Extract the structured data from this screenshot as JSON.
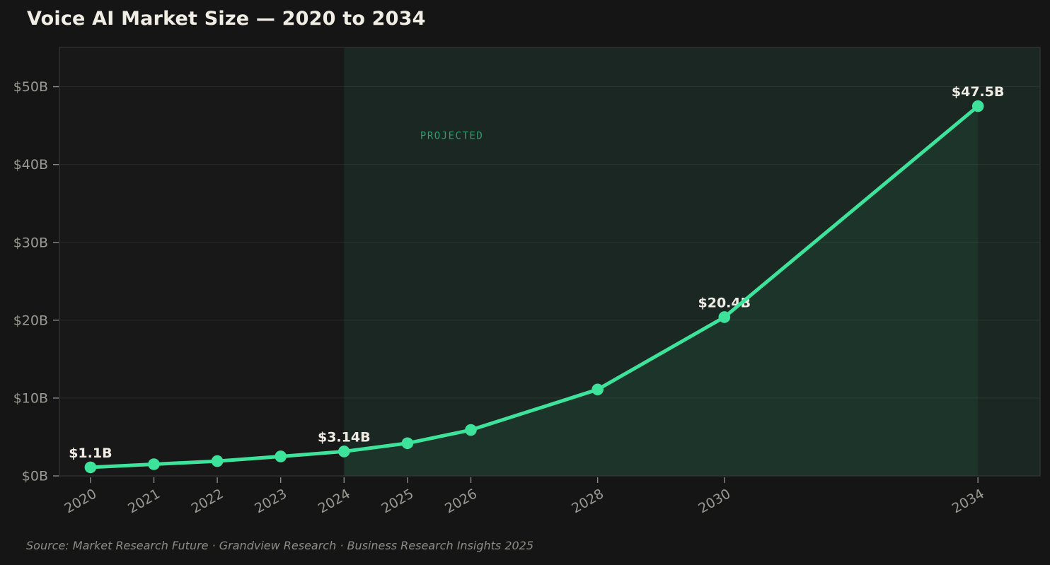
{
  "chart_data": {
    "type": "line",
    "title": "Voice AI Market Size — 2020 to 2034",
    "source": "Source: Market Research Future · Grandview Research · Business Research Insights 2025",
    "annotation": {
      "text": "PROJECTED",
      "x": 2025.7,
      "y": 43.3
    },
    "xlim": [
      2019.51,
      2034.98
    ],
    "ylim": [
      0,
      55.05
    ],
    "grid": "horizontal",
    "legend": "none",
    "projected_span": {
      "from": 2024,
      "to": 2034.98
    },
    "xticks": [
      {
        "v": 2020,
        "label": "2020"
      },
      {
        "v": 2021,
        "label": "2021"
      },
      {
        "v": 2022,
        "label": "2022"
      },
      {
        "v": 2023,
        "label": "2023"
      },
      {
        "v": 2024,
        "label": "2024"
      },
      {
        "v": 2025,
        "label": "2025"
      },
      {
        "v": 2026,
        "label": "2026"
      },
      {
        "v": 2028,
        "label": "2028"
      },
      {
        "v": 2030,
        "label": "2030"
      },
      {
        "v": 2034,
        "label": "2034"
      }
    ],
    "yticks": [
      {
        "v": 0,
        "label": "$0B"
      },
      {
        "v": 10,
        "label": "$10B"
      },
      {
        "v": 20,
        "label": "$20B"
      },
      {
        "v": 30,
        "label": "$30B"
      },
      {
        "v": 40,
        "label": "$40B"
      },
      {
        "v": 50,
        "label": "$50B"
      }
    ],
    "series": [
      {
        "name": "voice-ai-market-size",
        "x": [
          2020,
          2021,
          2022,
          2023,
          2024,
          2025,
          2026,
          2028,
          2030,
          2034
        ],
        "values": [
          1.1,
          1.5,
          1.9,
          2.5,
          3.14,
          4.2,
          5.9,
          11.1,
          20.4,
          47.5
        ],
        "point_labels": [
          {
            "x": 2020,
            "text": "$1.1B"
          },
          {
            "x": 2024,
            "text": "$3.14B"
          },
          {
            "x": 2030,
            "text": "$20.4B"
          },
          {
            "x": 2034,
            "text": "$47.5B"
          }
        ]
      }
    ],
    "colors": {
      "background": "#151515",
      "plot_background": "#181818",
      "line": "#3ee39b",
      "marker": "#3ee39b",
      "projected_fill": "rgba(62,227,155,0.075)",
      "under_curve_fill": "rgba(62,227,155,0.07)",
      "projected_text": "#2f9e6b",
      "gridline": "rgba(255,255,255,0.07)",
      "frame": "#3a3a3a",
      "tick_mark": "#8a8a8a",
      "tick_label": "#9a9a93",
      "data_label": "#f0ece4",
      "title": "#f0ede5",
      "source": "#8c8c86"
    }
  }
}
